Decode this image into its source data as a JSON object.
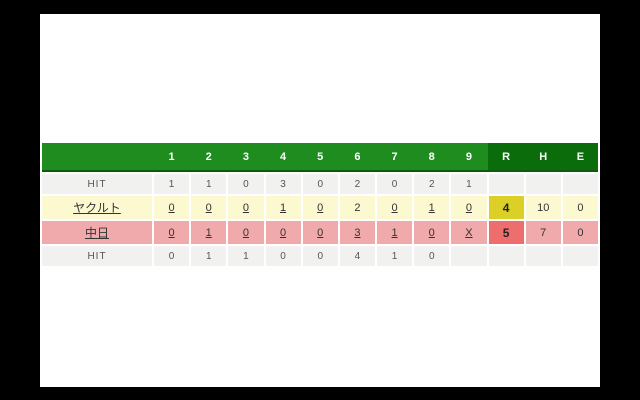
{
  "header": {
    "innings": [
      "1",
      "2",
      "3",
      "4",
      "5",
      "6",
      "7",
      "8",
      "9"
    ],
    "totals": [
      "R",
      "H",
      "E"
    ]
  },
  "rows": {
    "away_hits": {
      "label": "HIT",
      "cells": [
        "1",
        "1",
        "0",
        "3",
        "0",
        "2",
        "0",
        "2",
        "1",
        "",
        "",
        ""
      ]
    },
    "away": {
      "name": "ヤクルト",
      "innings": [
        "0",
        "0",
        "0",
        "1",
        "0",
        "2",
        "0",
        "1",
        "0"
      ],
      "runs": "4",
      "hits": "10",
      "errors": "0"
    },
    "home": {
      "name": "中日",
      "innings": [
        "0",
        "1",
        "0",
        "0",
        "0",
        "3",
        "1",
        "0",
        "X"
      ],
      "runs": "5",
      "hits": "7",
      "errors": "0"
    },
    "home_hits": {
      "label": "HIT",
      "cells": [
        "0",
        "1",
        "1",
        "0",
        "0",
        "4",
        "1",
        "0",
        "",
        "",
        "",
        ""
      ]
    }
  },
  "colors": {
    "header_green": "#1f8c1f",
    "header_dark_green": "#0a6c0a",
    "header_border": "#0d5c0d",
    "hit_row_bg": "#f1f1ef",
    "away_row_bg": "#fcf8d0",
    "away_runs_bg": "#dcd026",
    "home_row_bg": "#f0aaac",
    "home_runs_bg": "#ee6e6e",
    "letterbox": "#000000",
    "panel_bg": "#ffffff"
  }
}
